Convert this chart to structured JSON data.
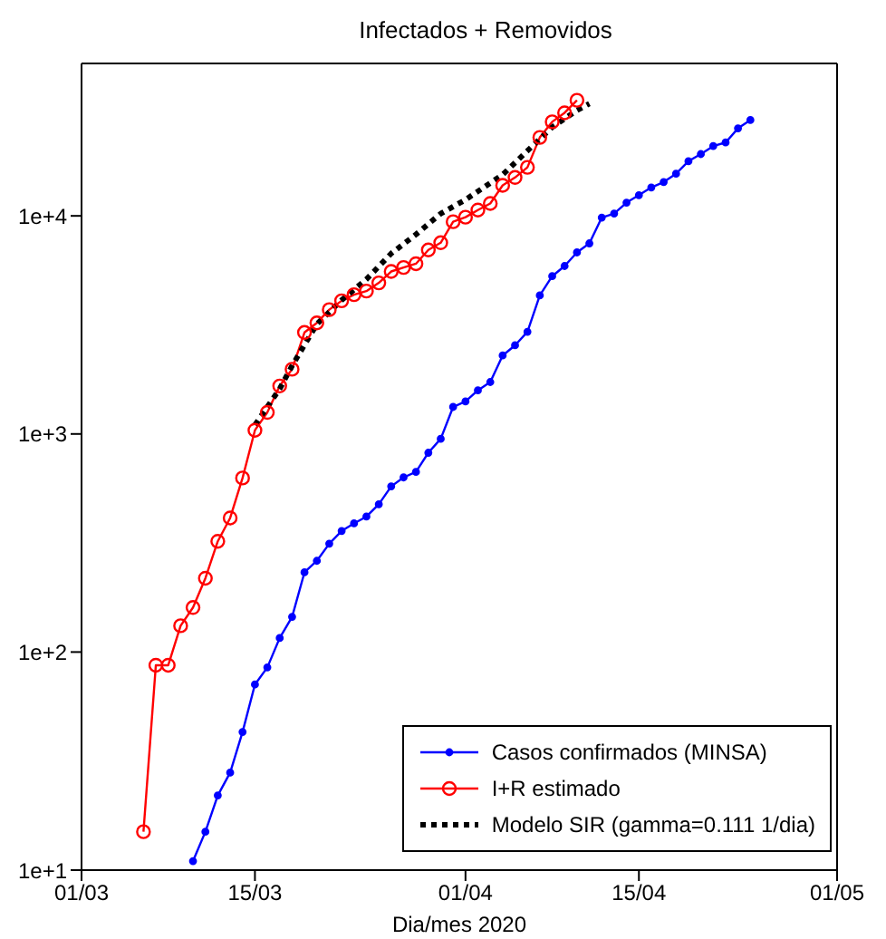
{
  "chart_data": {
    "type": "line",
    "title": "Infectados + Removidos",
    "xlabel": "Dia/mes 2020",
    "log": "y",
    "legend": "bottom right",
    "xlim": [
      "2020-03-01",
      "2020-05-01"
    ],
    "xticks": [
      {
        "value": "2020-03-01",
        "label": "01/03"
      },
      {
        "value": "2020-03-15",
        "label": "15/03"
      },
      {
        "value": "2020-04-01",
        "label": "01/04"
      },
      {
        "value": "2020-04-15",
        "label": "15/04"
      },
      {
        "value": "2020-05-01",
        "label": "01/05"
      }
    ],
    "ylim": [
      10,
      50000
    ],
    "yticks": [
      {
        "value": 10,
        "label": "1e+1"
      },
      {
        "value": 100,
        "label": "1e+2"
      },
      {
        "value": 1000,
        "label": "1e+3"
      },
      {
        "value": 10000,
        "label": "1e+4"
      }
    ],
    "series": [
      {
        "name": "Casos confirmados (MINSA)",
        "color": "#0000ff",
        "marker": "circle",
        "line_style": "solid",
        "x": [
          "2020-03-10",
          "2020-03-11",
          "2020-03-12",
          "2020-03-13",
          "2020-03-14",
          "2020-03-15",
          "2020-03-16",
          "2020-03-17",
          "2020-03-18",
          "2020-03-19",
          "2020-03-20",
          "2020-03-21",
          "2020-03-22",
          "2020-03-23",
          "2020-03-24",
          "2020-03-25",
          "2020-03-26",
          "2020-03-27",
          "2020-03-28",
          "2020-03-29",
          "2020-03-30",
          "2020-03-31",
          "2020-04-01",
          "2020-04-02",
          "2020-04-03",
          "2020-04-04",
          "2020-04-05",
          "2020-04-06",
          "2020-04-07",
          "2020-04-08",
          "2020-04-09",
          "2020-04-10",
          "2020-04-11",
          "2020-04-12",
          "2020-04-13",
          "2020-04-14",
          "2020-04-15",
          "2020-04-16",
          "2020-04-17",
          "2020-04-18",
          "2020-04-19",
          "2020-04-20",
          "2020-04-21",
          "2020-04-22",
          "2020-04-23",
          "2020-04-24"
        ],
        "values": [
          11,
          15,
          22,
          28,
          43,
          71,
          85,
          116,
          145,
          232,
          262,
          314,
          359,
          389,
          418,
          476,
          575,
          632,
          670,
          820,
          950,
          1330,
          1410,
          1585,
          1730,
          2290,
          2550,
          2940,
          4320,
          5290,
          5890,
          6800,
          7480,
          9820,
          10250,
          11500,
          12450,
          13500,
          14300,
          15600,
          17800,
          19200,
          20900,
          21700,
          25200,
          27500
        ]
      },
      {
        "name": "I+R estimado",
        "color": "#ff0000",
        "marker": "circle",
        "line_style": "solid",
        "x": [
          "2020-03-06",
          "2020-03-07",
          "2020-03-08",
          "2020-03-09",
          "2020-03-10",
          "2020-03-11",
          "2020-03-12",
          "2020-03-13",
          "2020-03-14",
          "2020-03-15",
          "2020-03-16",
          "2020-03-17",
          "2020-03-18",
          "2020-03-19",
          "2020-03-20",
          "2020-03-21",
          "2020-03-22",
          "2020-03-23",
          "2020-03-24",
          "2020-03-25",
          "2020-03-26",
          "2020-03-27",
          "2020-03-28",
          "2020-03-29",
          "2020-03-30",
          "2020-03-31",
          "2020-04-01",
          "2020-04-02",
          "2020-04-03",
          "2020-04-04",
          "2020-04-05",
          "2020-04-06",
          "2020-04-07",
          "2020-04-08",
          "2020-04-09",
          "2020-04-10"
        ],
        "values": [
          15,
          87,
          87,
          132,
          160,
          218,
          322,
          412,
          628,
          1040,
          1255,
          1660,
          1980,
          2920,
          3230,
          3715,
          4080,
          4350,
          4520,
          4930,
          5560,
          5800,
          6035,
          6980,
          7530,
          9400,
          9860,
          10640,
          11400,
          13800,
          15000,
          16700,
          22900,
          27000,
          29700,
          33900
        ]
      },
      {
        "name": "Modelo SIR (gamma=0.111 1/dia)",
        "color": "#000000",
        "marker": "none",
        "line_style": "dotted",
        "x": [
          "2020-03-15",
          "2020-03-17",
          "2020-03-18",
          "2020-03-19",
          "2020-03-20",
          "2020-03-22",
          "2020-03-24",
          "2020-03-26",
          "2020-03-28",
          "2020-03-30",
          "2020-04-01",
          "2020-04-04",
          "2020-04-06",
          "2020-04-08",
          "2020-04-10",
          "2020-04-11"
        ],
        "values": [
          1100,
          1610,
          2055,
          2560,
          3190,
          4110,
          5120,
          6720,
          8220,
          10240,
          11860,
          15450,
          19870,
          25500,
          30500,
          32700
        ]
      }
    ]
  }
}
